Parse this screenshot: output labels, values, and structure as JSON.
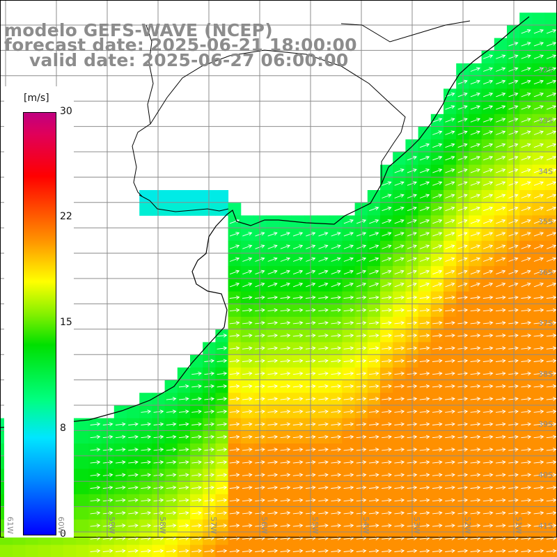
{
  "title": {
    "line1": "modelo GEFS-WAVE (NCEP)",
    "line2": "forecast date: 2025-06-21 18:00:00",
    "line3": "valid date: 2025-06-27 06:00:00"
  },
  "colorbar": {
    "unit": "[m/s]",
    "min": 0,
    "max": 30,
    "ticks": [
      "30",
      "22",
      "15",
      "8",
      "0"
    ],
    "stops": [
      "#0000ff",
      "#008aff",
      "#00e6ff",
      "#00ff80",
      "#00e000",
      "#80f000",
      "#ffff00",
      "#ff9000",
      "#ff3000",
      "#ff0000",
      "#e0005a",
      "#c00080"
    ]
  },
  "lat_labels": [
    "32S",
    "33S",
    "34S",
    "35S",
    "36S",
    "37S",
    "38S",
    "39S",
    "40S",
    "41S"
  ],
  "lon_labels": [
    "61W",
    "60W",
    "59W",
    "58W",
    "57W",
    "56W",
    "55W",
    "54W",
    "53W",
    "52W",
    "51W"
  ],
  "colors": {
    "land": "#ffffff",
    "grid": "#8c8c8c",
    "coast": "#000000",
    "arrows": "#ffffff",
    "title": "#8c8c8c"
  }
}
